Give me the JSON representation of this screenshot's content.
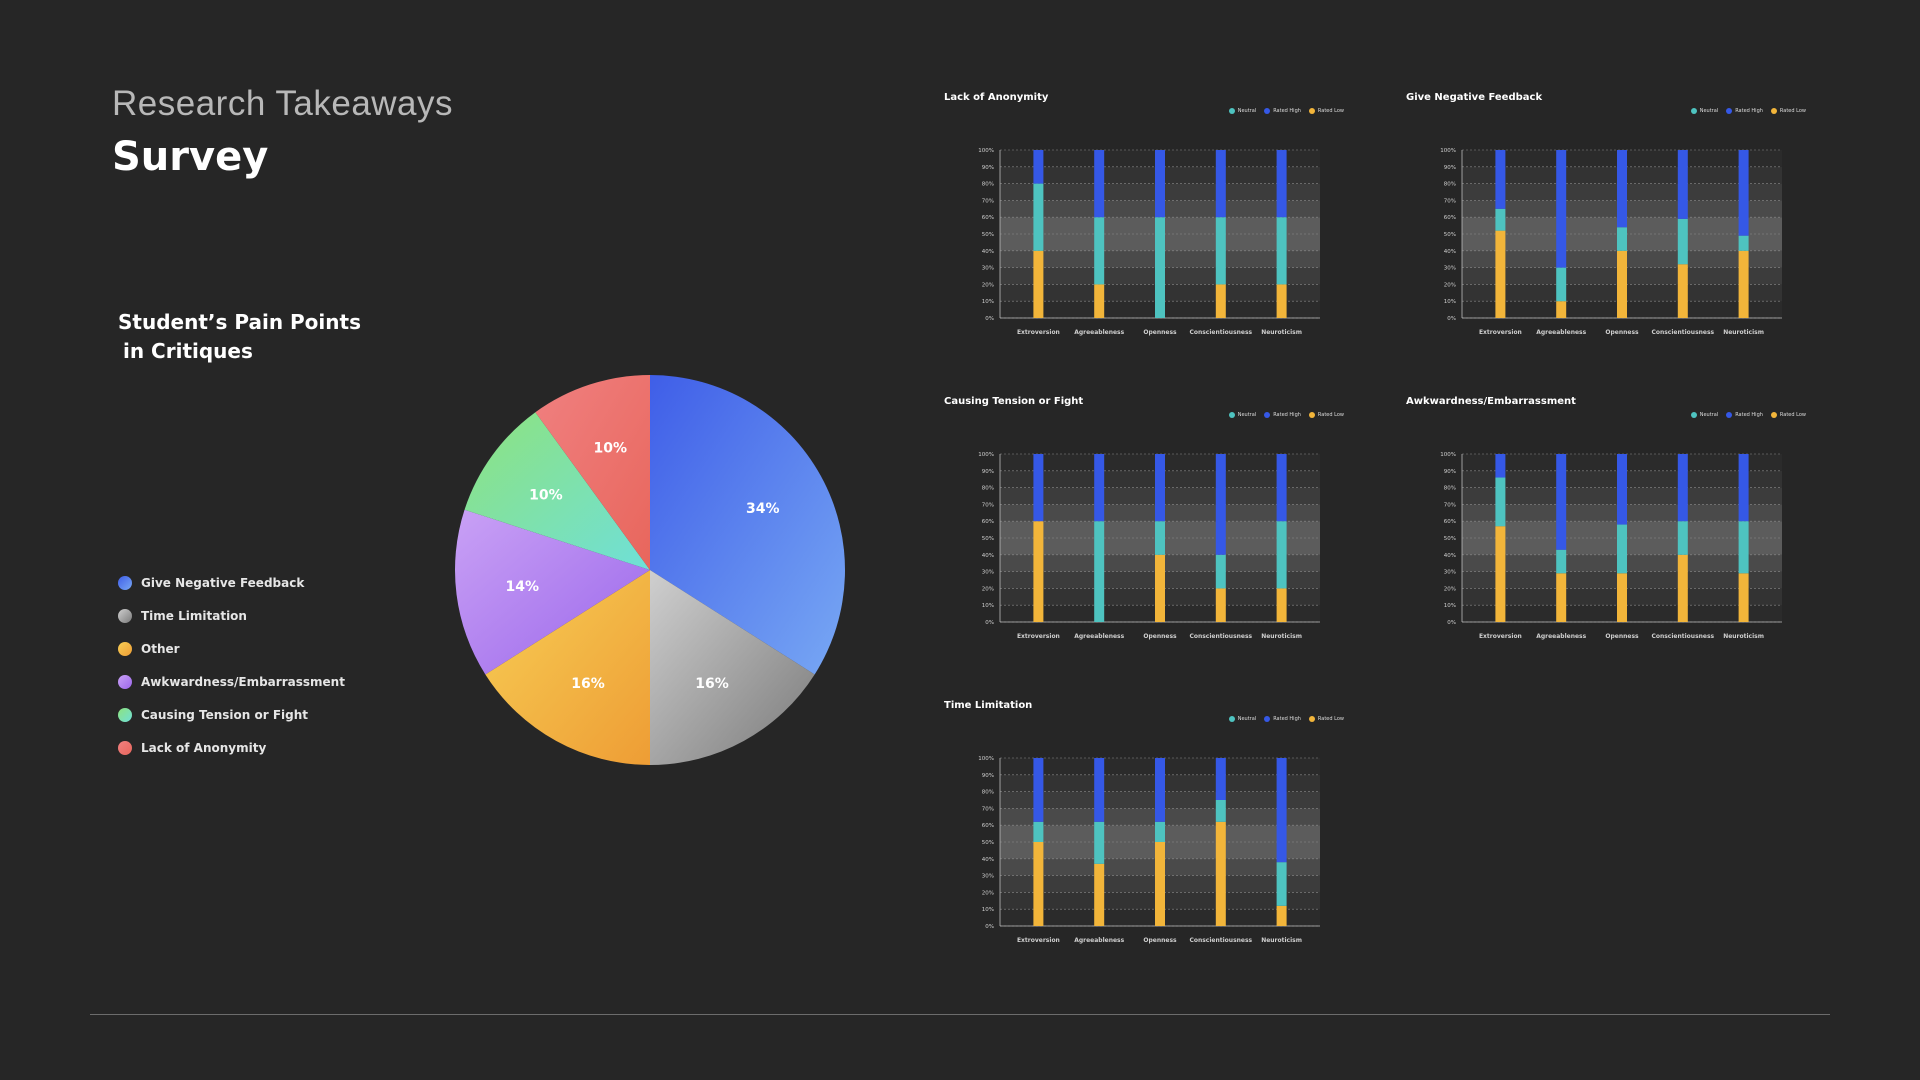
{
  "header": {
    "kicker": "Research Takeaways",
    "title": "Survey"
  },
  "pie_section": {
    "title_line1": "Student’s Pain Points",
    "title_line2": "in Critiques"
  },
  "colors": {
    "neutral": "#4ec3c0",
    "rated_high": "#3558e6",
    "rated_low": "#f2b53a"
  },
  "chart_data": [
    {
      "type": "pie",
      "title": "Student’s Pain Points in Critiques",
      "slices": [
        {
          "label": "Give Negative Feedback",
          "value": 34,
          "display": "34%",
          "color_a": "#3f5ee8",
          "color_b": "#78a8f4"
        },
        {
          "label": "Time Limitation",
          "value": 16,
          "display": "16%",
          "color_a": "#cfcfcf",
          "color_b": "#7a7a7a"
        },
        {
          "label": "Other",
          "value": 16,
          "display": "16%",
          "color_a": "#f7ce55",
          "color_b": "#ee9d35"
        },
        {
          "label": "Awkwardness/Embarrassment",
          "value": 14,
          "display": "14%",
          "color_a": "#c9a1f5",
          "color_b": "#9b66eb"
        },
        {
          "label": "Causing Tension or Fight",
          "value": 10,
          "display": "10%",
          "color_a": "#8ee27d",
          "color_b": "#6fe0d8"
        },
        {
          "label": "Lack of Anonymity",
          "value": 10,
          "display": "10%",
          "color_a": "#f08080",
          "color_b": "#e8665c"
        }
      ]
    },
    {
      "type": "bar",
      "title": "Lack of Anonymity",
      "legend": [
        "Neutral",
        "Rated High",
        "Rated Low"
      ],
      "categories": [
        "Extroversion",
        "Agreeableness",
        "Openness",
        "Conscientiousness",
        "Neuroticism"
      ],
      "yticks": [
        "0%",
        "10%",
        "20%",
        "30%",
        "40%",
        "50%",
        "60%",
        "70%",
        "80%",
        "90%",
        "100%"
      ],
      "ylim": [
        0,
        100
      ],
      "series": [
        {
          "name": "Rated Low",
          "values": [
            40,
            20,
            0,
            20,
            20
          ]
        },
        {
          "name": "Neutral",
          "values": [
            40,
            40,
            60,
            40,
            40
          ]
        },
        {
          "name": "Rated High",
          "values": [
            20,
            40,
            40,
            40,
            40
          ]
        }
      ]
    },
    {
      "type": "bar",
      "title": "Give Negative Feedback",
      "legend": [
        "Neutral",
        "Rated High",
        "Rated Low"
      ],
      "categories": [
        "Extroversion",
        "Agreeableness",
        "Openness",
        "Conscientiousness",
        "Neuroticism"
      ],
      "yticks": [
        "0%",
        "10%",
        "20%",
        "30%",
        "40%",
        "50%",
        "60%",
        "70%",
        "80%",
        "90%",
        "100%"
      ],
      "ylim": [
        0,
        100
      ],
      "series": [
        {
          "name": "Rated Low",
          "values": [
            52,
            10,
            40,
            32,
            40
          ]
        },
        {
          "name": "Neutral",
          "values": [
            13,
            20,
            14,
            27,
            9
          ]
        },
        {
          "name": "Rated High",
          "values": [
            35,
            70,
            46,
            41,
            51
          ]
        }
      ]
    },
    {
      "type": "bar",
      "title": "Causing Tension or Fight",
      "legend": [
        "Neutral",
        "Rated High",
        "Rated Low"
      ],
      "categories": [
        "Extroversion",
        "Agreeableness",
        "Openness",
        "Conscientiousness",
        "Neuroticism"
      ],
      "yticks": [
        "0%",
        "10%",
        "20%",
        "30%",
        "40%",
        "50%",
        "60%",
        "70%",
        "80%",
        "90%",
        "100%"
      ],
      "ylim": [
        0,
        100
      ],
      "series": [
        {
          "name": "Rated Low",
          "values": [
            60,
            0,
            40,
            20,
            20
          ]
        },
        {
          "name": "Neutral",
          "values": [
            0,
            60,
            20,
            20,
            40
          ]
        },
        {
          "name": "Rated High",
          "values": [
            40,
            40,
            40,
            60,
            40
          ]
        }
      ]
    },
    {
      "type": "bar",
      "title": "Awkwardness/Embarrassment",
      "legend": [
        "Neutral",
        "Rated High",
        "Rated Low"
      ],
      "categories": [
        "Extroversion",
        "Agreeableness",
        "Openness",
        "Conscientiousness",
        "Neuroticism"
      ],
      "yticks": [
        "0%",
        "10%",
        "20%",
        "30%",
        "40%",
        "50%",
        "60%",
        "70%",
        "80%",
        "90%",
        "100%"
      ],
      "ylim": [
        0,
        100
      ],
      "series": [
        {
          "name": "Rated Low",
          "values": [
            57,
            29,
            29,
            40,
            29
          ]
        },
        {
          "name": "Neutral",
          "values": [
            29,
            14,
            29,
            20,
            31
          ]
        },
        {
          "name": "Rated High",
          "values": [
            14,
            57,
            42,
            40,
            40
          ]
        }
      ]
    },
    {
      "type": "bar",
      "title": "Time Limitation",
      "legend": [
        "Neutral",
        "Rated High",
        "Rated Low"
      ],
      "categories": [
        "Extroversion",
        "Agreeableness",
        "Openness",
        "Conscientiousness",
        "Neuroticism"
      ],
      "yticks": [
        "0%",
        "10%",
        "20%",
        "30%",
        "40%",
        "50%",
        "60%",
        "70%",
        "80%",
        "90%",
        "100%"
      ],
      "ylim": [
        0,
        100
      ],
      "series": [
        {
          "name": "Rated Low",
          "values": [
            50,
            37,
            50,
            62,
            12
          ]
        },
        {
          "name": "Neutral",
          "values": [
            12,
            25,
            12,
            13,
            26
          ]
        },
        {
          "name": "Rated High",
          "values": [
            38,
            38,
            38,
            25,
            62
          ]
        }
      ]
    }
  ]
}
